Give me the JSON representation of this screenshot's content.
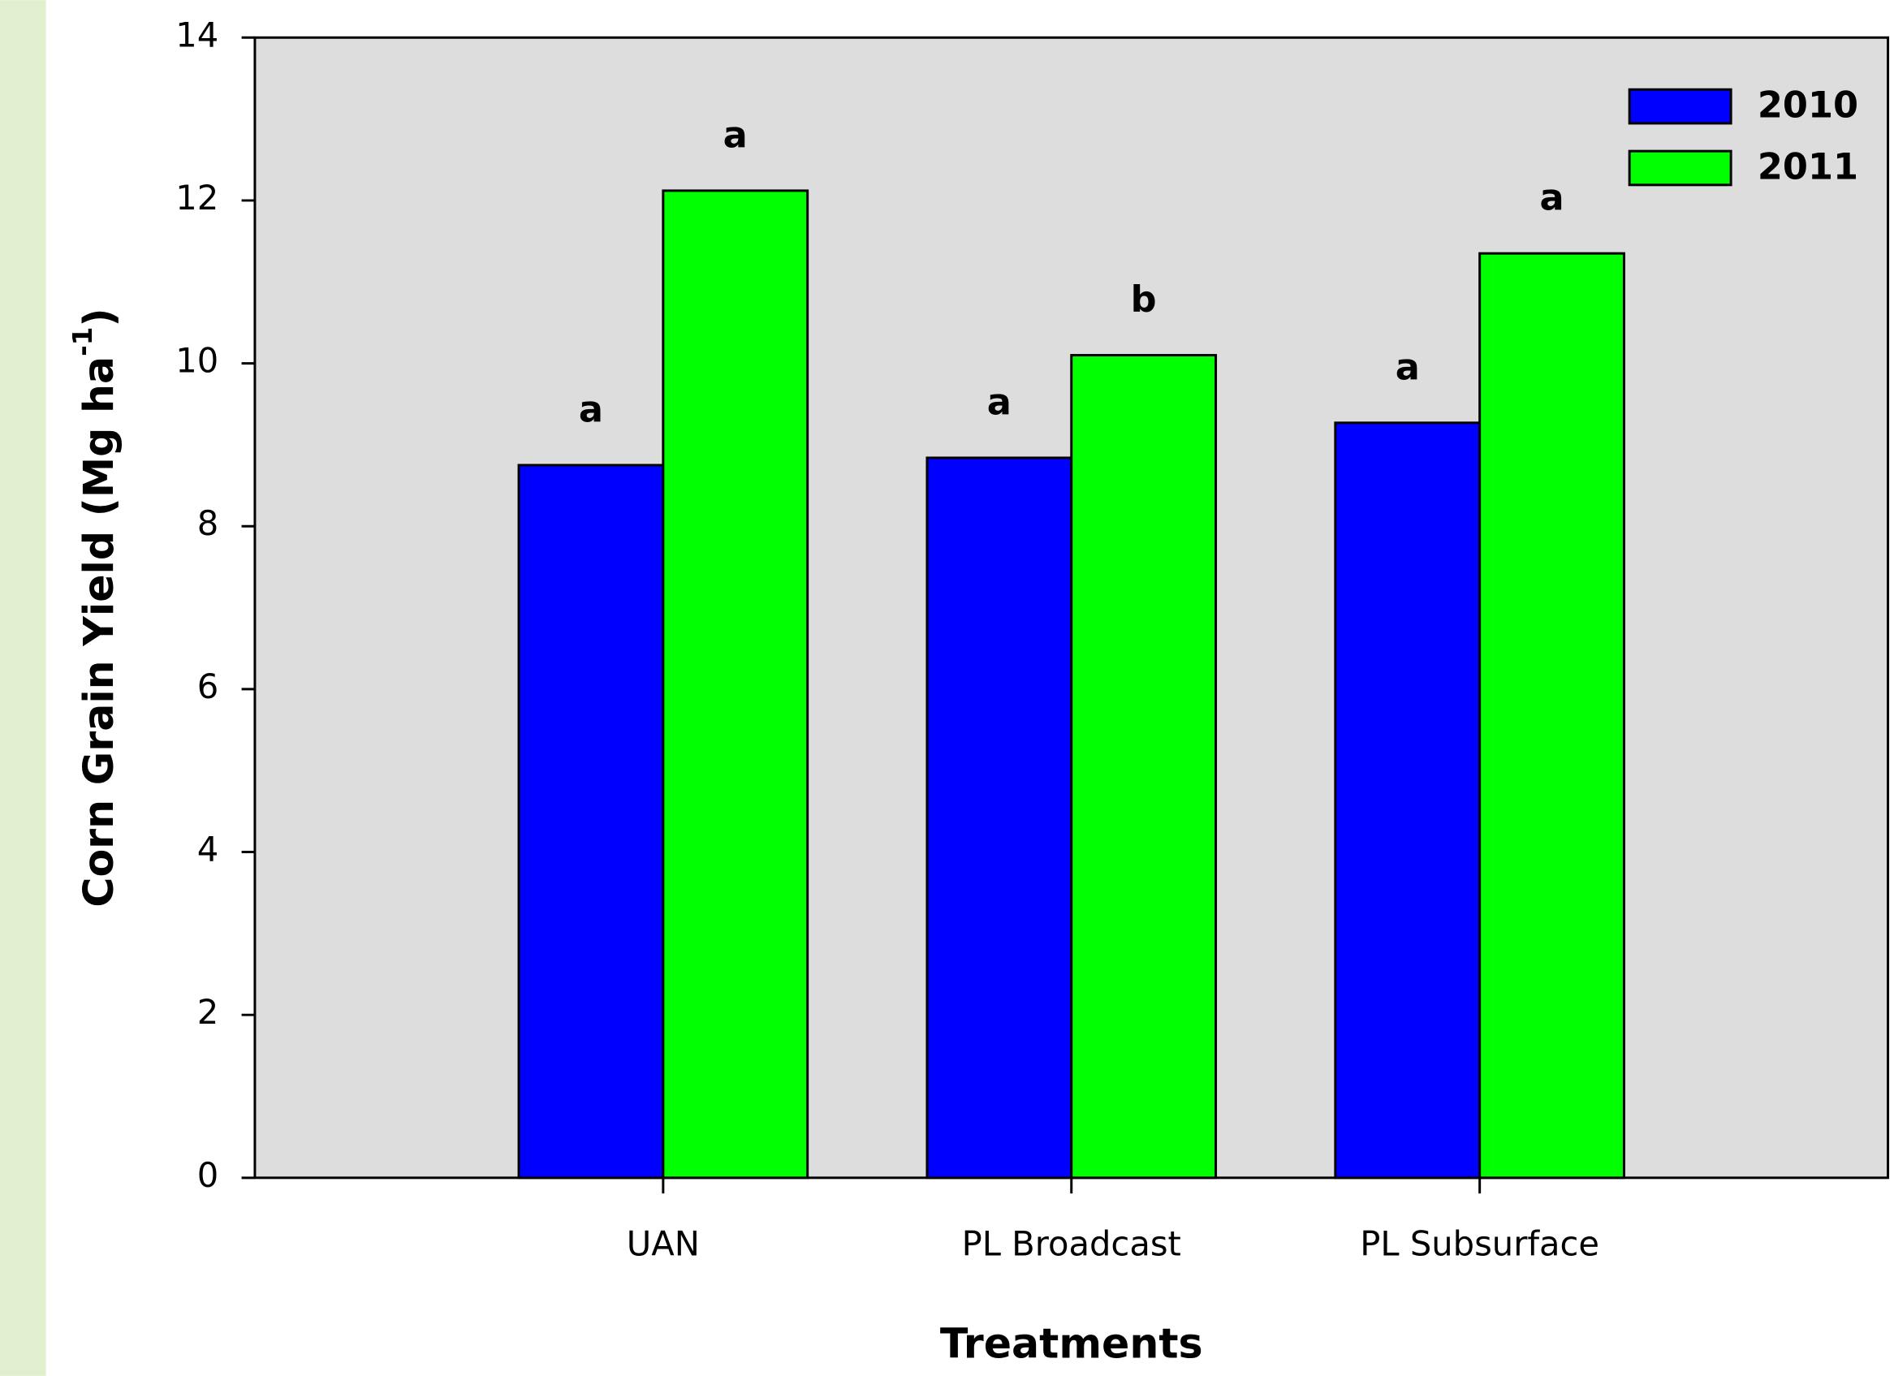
{
  "chart_data": {
    "type": "bar",
    "y_label": {
      "text": "Corn Grain Yield (Mg ha",
      "sup": "-1",
      "end": ")"
    },
    "x_label": "Treatments",
    "categories": [
      "UAN",
      "PL Broadcast",
      "PL Subsurface"
    ],
    "series": [
      {
        "name": "2010",
        "color": "#0000ff",
        "values": [
          8.75,
          8.84,
          9.27
        ],
        "annotations": [
          "a",
          "a",
          "a"
        ]
      },
      {
        "name": "2011",
        "color": "#00ff00",
        "values": [
          12.12,
          10.1,
          11.35
        ],
        "annotations": [
          "a",
          "b",
          "a"
        ]
      }
    ],
    "ylim": [
      0,
      14
    ],
    "yticks": [
      0,
      2,
      4,
      6,
      8,
      10,
      12,
      14
    ],
    "grid": false,
    "legend": "top-right",
    "background": "#dddddd"
  }
}
